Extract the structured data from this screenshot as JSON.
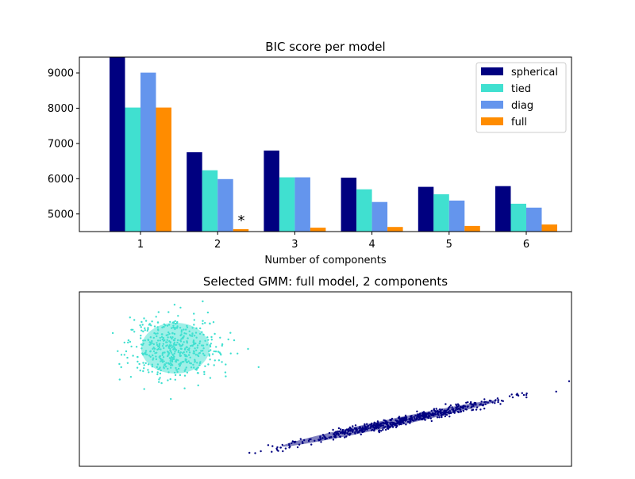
{
  "chart_data": [
    {
      "type": "bar",
      "title": "BIC score per model",
      "xlabel": "Number of components",
      "ylabel": "",
      "categories": [
        "1",
        "2",
        "3",
        "4",
        "5",
        "6"
      ],
      "ylim": [
        4500,
        9450
      ],
      "yticks": [
        5000,
        6000,
        7000,
        8000,
        9000
      ],
      "legend": "top-right",
      "series": [
        {
          "name": "spherical",
          "color": "#000080",
          "values": [
            9450,
            6750,
            6800,
            6030,
            5770,
            5790
          ]
        },
        {
          "name": "tied",
          "color": "#40e0d0",
          "values": [
            8020,
            6240,
            6040,
            5700,
            5560,
            5290
          ]
        },
        {
          "name": "diag",
          "color": "#6495ed",
          "values": [
            9010,
            5990,
            6040,
            5340,
            5380,
            5180
          ]
        },
        {
          "name": "full",
          "color": "#ff8c00",
          "values": [
            8020,
            4570,
            4610,
            4630,
            4660,
            4700
          ]
        }
      ],
      "annotations": [
        {
          "text": "*",
          "category": "2",
          "value": 4700
        }
      ]
    },
    {
      "type": "scatter",
      "title": "Selected GMM: full model, 2 components",
      "xlabel": "",
      "ylabel": "",
      "grid": false,
      "ticks": false,
      "series": [
        {
          "color": "#40e0d0",
          "shape": "round cluster with one ellipse"
        },
        {
          "color": "#000080",
          "shape": "thin diagonal band with one ellipse"
        }
      ]
    }
  ]
}
